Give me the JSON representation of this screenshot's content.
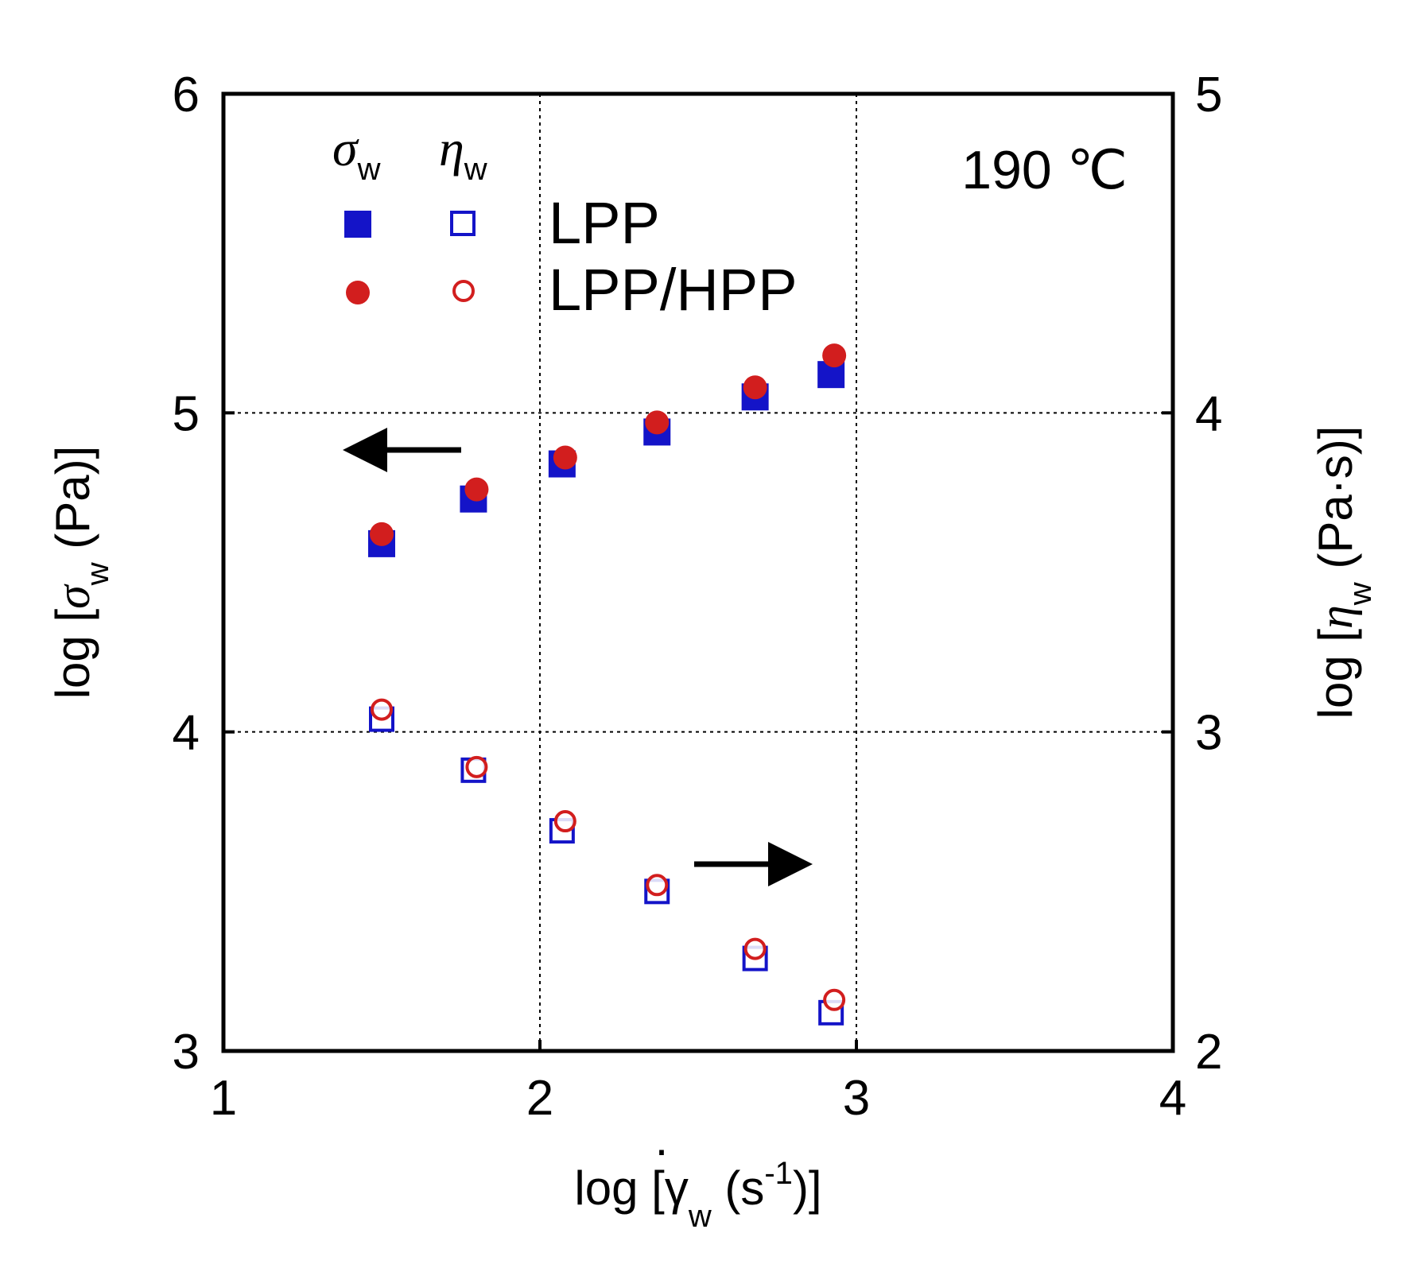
{
  "chart_data": {
    "type": "scatter",
    "annotation": "190 ℃",
    "x_axis": {
      "label_prefix": "log [",
      "symbol": "γ",
      "dot": "·",
      "sub": "w",
      "unit_open": " (s",
      "sup": "-1",
      "unit_close": ")]",
      "range": [
        1,
        4
      ],
      "ticks": [
        "1",
        "2",
        "3",
        "4"
      ]
    },
    "y_left_axis": {
      "label_prefix": "log [",
      "symbol": "σ",
      "sub": "w",
      "unit": " (Pa)]",
      "range": [
        3,
        6
      ],
      "ticks": [
        "3",
        "4",
        "5",
        "6"
      ]
    },
    "y_right_axis": {
      "label_prefix": "log [",
      "symbol": "η",
      "sub": "w",
      "unit": " (Pa·s)]",
      "range": [
        2,
        5
      ],
      "ticks": [
        "2",
        "3",
        "4",
        "5"
      ]
    },
    "legend": {
      "header_sigma": "σ",
      "header_eta": "η",
      "header_sub": "w",
      "entries": [
        "LPP",
        "LPP/HPP"
      ]
    },
    "colors": {
      "LPP": "#1414c8",
      "LPP/HPP": "#d21e1e"
    },
    "series": [
      {
        "name": "LPP σw",
        "sample": "LPP",
        "quantity": "sigma",
        "axis": "left",
        "marker": "square",
        "filled": true,
        "x": [
          1.5,
          1.79,
          2.07,
          2.37,
          2.68,
          2.92
        ],
        "y": [
          4.59,
          4.73,
          4.84,
          4.94,
          5.05,
          5.12
        ]
      },
      {
        "name": "LPP/HPP σw",
        "sample": "LPP/HPP",
        "quantity": "sigma",
        "axis": "left",
        "marker": "circle",
        "filled": true,
        "x": [
          1.5,
          1.8,
          2.08,
          2.37,
          2.68,
          2.93
        ],
        "y": [
          4.62,
          4.76,
          4.86,
          4.97,
          5.08,
          5.18
        ]
      },
      {
        "name": "LPP ηw",
        "sample": "LPP",
        "quantity": "eta",
        "axis": "right",
        "marker": "square",
        "filled": false,
        "x": [
          1.5,
          1.79,
          2.07,
          2.37,
          2.68,
          2.92
        ],
        "y": [
          3.04,
          2.88,
          2.69,
          2.5,
          2.29,
          2.12
        ]
      },
      {
        "name": "LPP/HPP ηw",
        "sample": "LPP/HPP",
        "quantity": "eta",
        "axis": "right",
        "marker": "circle",
        "filled": false,
        "x": [
          1.5,
          1.8,
          2.08,
          2.37,
          2.68,
          2.93
        ],
        "y": [
          3.07,
          2.89,
          2.72,
          2.52,
          2.32,
          2.16
        ]
      }
    ],
    "arrows": [
      {
        "name": "left-axis-arrow",
        "direction": "left"
      },
      {
        "name": "right-axis-arrow",
        "direction": "right"
      }
    ],
    "grid": true
  }
}
